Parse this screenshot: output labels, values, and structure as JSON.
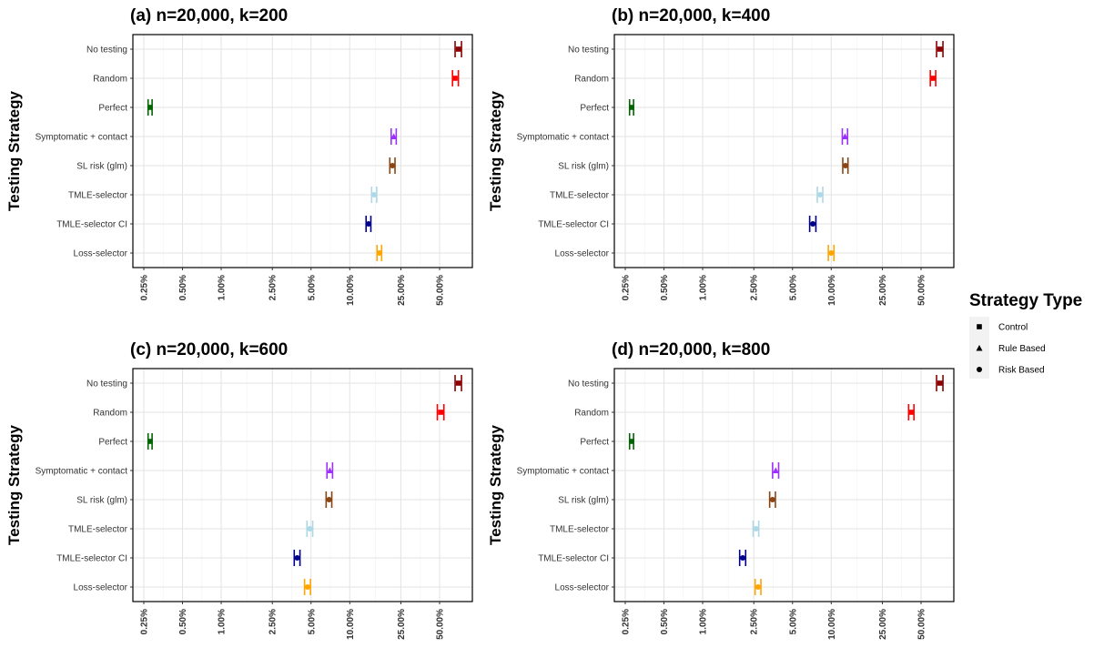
{
  "chart_data": [
    {
      "type": "scatter",
      "title": "(a) n=20,000, k=200",
      "ylabel": "Testing Strategy",
      "xscale": "log",
      "xticks": [
        "0.25%",
        "0.50%",
        "1.00%",
        "2.50%",
        "5.00%",
        "10.00%",
        "25.00%",
        "50.00%"
      ],
      "categories": [
        "No testing",
        "Random",
        "Perfect",
        "Symptomatic + contact",
        "SL risk (glm)",
        "TMLE-selector",
        "TMLE-selector CI",
        "Loss-selector"
      ],
      "points": [
        {
          "strategy": "No testing",
          "value": 70,
          "low": 66,
          "high": 74,
          "type": "Control",
          "color": "#8B0000"
        },
        {
          "strategy": "Random",
          "value": 66,
          "low": 63,
          "high": 70,
          "type": "Control",
          "color": "#FF0000"
        },
        {
          "strategy": "Perfect",
          "value": 0.28,
          "low": 0.27,
          "high": 0.29,
          "type": "Control",
          "color": "#006400"
        },
        {
          "strategy": "Symptomatic + contact",
          "value": 22,
          "low": 21,
          "high": 23,
          "type": "Rule Based",
          "color": "#9B30FF"
        },
        {
          "strategy": "SL risk (glm)",
          "value": 21.5,
          "low": 20.5,
          "high": 22.5,
          "type": "Risk Based",
          "color": "#8B4513"
        },
        {
          "strategy": "TMLE-selector",
          "value": 15.5,
          "low": 14.8,
          "high": 16.2,
          "type": "Risk Based",
          "color": "#ADD8E6"
        },
        {
          "strategy": "TMLE-selector CI",
          "value": 14,
          "low": 13.4,
          "high": 14.6,
          "type": "Risk Based",
          "color": "#00008B"
        },
        {
          "strategy": "Loss-selector",
          "value": 17,
          "low": 16.3,
          "high": 17.7,
          "type": "Risk Based",
          "color": "#FFA500"
        }
      ]
    },
    {
      "type": "scatter",
      "title": "(b) n=20,000, k=400",
      "ylabel": "Testing Strategy",
      "xscale": "log",
      "xticks": [
        "0.25%",
        "0.50%",
        "1.00%",
        "2.50%",
        "5.00%",
        "10.00%",
        "25.00%",
        "50.00%"
      ],
      "categories": [
        "No testing",
        "Random",
        "Perfect",
        "Symptomatic + contact",
        "SL risk (glm)",
        "TMLE-selector",
        "TMLE-selector CI",
        "Loss-selector"
      ],
      "points": [
        {
          "strategy": "No testing",
          "value": 70,
          "low": 66,
          "high": 74,
          "type": "Control",
          "color": "#8B0000"
        },
        {
          "strategy": "Random",
          "value": 62,
          "low": 59,
          "high": 65,
          "type": "Control",
          "color": "#FF0000"
        },
        {
          "strategy": "Perfect",
          "value": 0.28,
          "low": 0.27,
          "high": 0.29,
          "type": "Control",
          "color": "#006400"
        },
        {
          "strategy": "Symptomatic + contact",
          "value": 12.8,
          "low": 12.2,
          "high": 13.4,
          "type": "Rule Based",
          "color": "#9B30FF"
        },
        {
          "strategy": "SL risk (glm)",
          "value": 12.9,
          "low": 12.3,
          "high": 13.5,
          "type": "Risk Based",
          "color": "#8B4513"
        },
        {
          "strategy": "TMLE-selector",
          "value": 8.2,
          "low": 7.8,
          "high": 8.6,
          "type": "Risk Based",
          "color": "#ADD8E6"
        },
        {
          "strategy": "TMLE-selector CI",
          "value": 7.2,
          "low": 6.8,
          "high": 7.6,
          "type": "Risk Based",
          "color": "#00008B"
        },
        {
          "strategy": "Loss-selector",
          "value": 10,
          "low": 9.5,
          "high": 10.5,
          "type": "Risk Based",
          "color": "#FFA500"
        }
      ]
    },
    {
      "type": "scatter",
      "title": "(c) n=20,000, k=600",
      "ylabel": "Testing Strategy",
      "xscale": "log",
      "xticks": [
        "0.25%",
        "0.50%",
        "1.00%",
        "2.50%",
        "5.00%",
        "10.00%",
        "25.00%",
        "50.00%"
      ],
      "categories": [
        "No testing",
        "Random",
        "Perfect",
        "Symptomatic + contact",
        "SL risk (glm)",
        "TMLE-selector",
        "TMLE-selector CI",
        "Loss-selector"
      ],
      "points": [
        {
          "strategy": "No testing",
          "value": 70,
          "low": 66,
          "high": 74,
          "type": "Control",
          "color": "#8B0000"
        },
        {
          "strategy": "Random",
          "value": 51,
          "low": 48,
          "high": 54,
          "type": "Control",
          "color": "#FF0000"
        },
        {
          "strategy": "Perfect",
          "value": 0.28,
          "low": 0.27,
          "high": 0.29,
          "type": "Control",
          "color": "#006400"
        },
        {
          "strategy": "Symptomatic + contact",
          "value": 7,
          "low": 6.65,
          "high": 7.35,
          "type": "Rule Based",
          "color": "#9B30FF"
        },
        {
          "strategy": "SL risk (glm)",
          "value": 6.9,
          "low": 6.55,
          "high": 7.25,
          "type": "Risk Based",
          "color": "#8B4513"
        },
        {
          "strategy": "TMLE-selector",
          "value": 4.9,
          "low": 4.65,
          "high": 5.15,
          "type": "Risk Based",
          "color": "#ADD8E6"
        },
        {
          "strategy": "TMLE-selector CI",
          "value": 3.9,
          "low": 3.7,
          "high": 4.1,
          "type": "Risk Based",
          "color": "#00008B"
        },
        {
          "strategy": "Loss-selector",
          "value": 4.7,
          "low": 4.45,
          "high": 4.95,
          "type": "Risk Based",
          "color": "#FFA500"
        }
      ]
    },
    {
      "type": "scatter",
      "title": "(d) n=20,000, k=800",
      "ylabel": "Testing Strategy",
      "xscale": "log",
      "xticks": [
        "0.25%",
        "0.50%",
        "1.00%",
        "2.50%",
        "5.00%",
        "10.00%",
        "25.00%",
        "50.00%"
      ],
      "categories": [
        "No testing",
        "Random",
        "Perfect",
        "Symptomatic + contact",
        "SL risk (glm)",
        "TMLE-selector",
        "TMLE-selector CI",
        "Loss-selector"
      ],
      "points": [
        {
          "strategy": "No testing",
          "value": 70,
          "low": 66,
          "high": 74,
          "type": "Control",
          "color": "#8B0000"
        },
        {
          "strategy": "Random",
          "value": 42,
          "low": 40,
          "high": 44,
          "type": "Control",
          "color": "#FF0000"
        },
        {
          "strategy": "Perfect",
          "value": 0.28,
          "low": 0.27,
          "high": 0.29,
          "type": "Control",
          "color": "#006400"
        },
        {
          "strategy": "Symptomatic + contact",
          "value": 3.7,
          "low": 3.5,
          "high": 3.9,
          "type": "Rule Based",
          "color": "#9B30FF"
        },
        {
          "strategy": "SL risk (glm)",
          "value": 3.5,
          "low": 3.32,
          "high": 3.68,
          "type": "Risk Based",
          "color": "#8B4513"
        },
        {
          "strategy": "TMLE-selector",
          "value": 2.6,
          "low": 2.47,
          "high": 2.73,
          "type": "Risk Based",
          "color": "#ADD8E6"
        },
        {
          "strategy": "TMLE-selector CI",
          "value": 2.05,
          "low": 1.94,
          "high": 2.16,
          "type": "Risk Based",
          "color": "#00008B"
        },
        {
          "strategy": "Loss-selector",
          "value": 2.7,
          "low": 2.56,
          "high": 2.84,
          "type": "Risk Based",
          "color": "#FFA500"
        }
      ]
    }
  ],
  "legend": {
    "title": "Strategy Type",
    "items": [
      {
        "label": "Control",
        "shape": "square"
      },
      {
        "label": "Rule Based",
        "shape": "triangle"
      },
      {
        "label": "Risk Based",
        "shape": "circle"
      }
    ]
  }
}
